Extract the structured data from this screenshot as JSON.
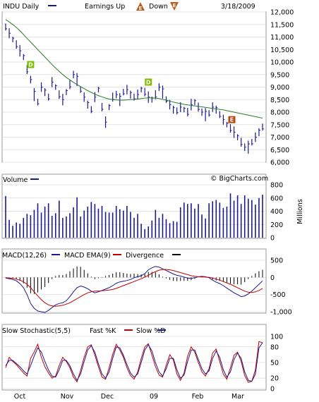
{
  "header": {
    "symbol_label": "INDU Daily",
    "earnings_label": "Earnings Up",
    "up_badge": "E",
    "down_label": "Down",
    "down_badge": "E",
    "date": "3/18/2009"
  },
  "watermark": "© BigCharts.com",
  "chart_data": [
    {
      "type": "line",
      "title": "INDU Daily",
      "ylim": [
        6000,
        12000
      ],
      "yticks": [
        "12,000",
        "11,500",
        "11,000",
        "10,500",
        "10,000",
        "9,500",
        "9,000",
        "8,500",
        "8,000",
        "7,500",
        "7,000",
        "6,500",
        "6,000"
      ],
      "series": [
        {
          "name": "INDU Daily",
          "values": [
            11400,
            11150,
            10900,
            10700,
            10450,
            10200,
            9700,
            9300,
            8700,
            8400,
            9000,
            8800,
            8600,
            9200,
            9000,
            8700,
            8500,
            8800,
            9100,
            9500,
            9300,
            8900,
            8600,
            8300,
            8100,
            8600,
            8900,
            8200,
            7600,
            8200,
            8600,
            8700,
            8500,
            8800,
            8900,
            8700,
            8600,
            8700,
            8900,
            8800,
            8600,
            8500,
            8700,
            9000,
            8800,
            8500,
            8300,
            8100,
            8050,
            8200,
            8100,
            8000,
            8300,
            8400,
            8200,
            8000,
            7900,
            7950,
            8200,
            8100,
            7900,
            7700,
            7500,
            7350,
            7200,
            7000,
            6800,
            6600,
            6600,
            6800,
            7000,
            7200,
            7400
          ]
        }
      ],
      "moving_average": [
        11700,
        11600,
        11500,
        11380,
        11250,
        11100,
        10950,
        10800,
        10650,
        10500,
        10350,
        10200,
        10050,
        9900,
        9760,
        9630,
        9500,
        9390,
        9290,
        9190,
        9100,
        9020,
        8940,
        8860,
        8790,
        8720,
        8660,
        8610,
        8560,
        8520,
        8500,
        8490,
        8480,
        8480,
        8490,
        8500,
        8510,
        8520,
        8540,
        8560,
        8570,
        8570,
        8560,
        8540,
        8510,
        8480,
        8440,
        8400,
        8370,
        8340,
        8310,
        8290,
        8270,
        8250,
        8230,
        8210,
        8190,
        8170,
        8150,
        8130,
        8110,
        8090,
        8060,
        8030,
        8000,
        7970,
        7940,
        7910,
        7880,
        7850,
        7820,
        7790,
        7760
      ],
      "dividends": [
        {
          "index": 7,
          "label": "D"
        },
        {
          "index": 40,
          "label": "D"
        }
      ],
      "earnings": [
        {
          "index": 63,
          "label": "E"
        }
      ]
    },
    {
      "type": "bar",
      "title": "Volume",
      "ylabel": "Millions",
      "ylim": [
        0,
        800
      ],
      "yticks": [
        "800",
        "600",
        "400",
        "200",
        "0"
      ],
      "values": [
        630,
        270,
        180,
        230,
        210,
        300,
        360,
        340,
        420,
        520,
        380,
        470,
        520,
        330,
        370,
        560,
        300,
        320,
        370,
        460,
        610,
        320,
        410,
        470,
        540,
        510,
        440,
        480,
        390,
        380,
        380,
        480,
        430,
        410,
        480,
        390,
        300,
        360,
        210,
        130,
        170,
        260,
        420,
        300,
        360,
        280,
        220,
        250,
        240,
        460,
        530,
        510,
        520,
        440,
        510,
        350,
        290,
        520,
        550,
        570,
        530,
        450,
        470,
        670,
        560,
        640,
        510,
        640,
        590,
        570,
        500,
        600,
        650
      ]
    },
    {
      "type": "line",
      "title": "MACD(12,26)",
      "ylim": [
        -1000,
        500
      ],
      "yticks": [
        "500",
        "0",
        "-500",
        "-1,000"
      ],
      "legend": [
        "MACD EMA(9)",
        "Divergence"
      ],
      "series": [
        {
          "name": "MACD(12,26)",
          "values": [
            -20,
            -40,
            -60,
            -100,
            -180,
            -300,
            -500,
            -760,
            -900,
            -980,
            -1000,
            -1020,
            -960,
            -880,
            -800,
            -760,
            -740,
            -680,
            -560,
            -420,
            -300,
            -250,
            -280,
            -330,
            -400,
            -450,
            -420,
            -380,
            -340,
            -300,
            -240,
            -170,
            -130,
            -110,
            -90,
            -60,
            -10,
            20,
            50,
            110,
            220,
            280,
            320,
            300,
            250,
            200,
            150,
            100,
            60,
            40,
            10,
            -20,
            -30,
            -10,
            20,
            30,
            20,
            -10,
            -80,
            -140,
            -180,
            -240,
            -310,
            -380,
            -450,
            -500,
            -560,
            -540,
            -480,
            -400,
            -300,
            -200,
            -100
          ]
        },
        {
          "name": "MACD EMA(9)",
          "values": [
            -10,
            -20,
            -30,
            -50,
            -80,
            -130,
            -200,
            -300,
            -420,
            -540,
            -650,
            -740,
            -800,
            -830,
            -840,
            -830,
            -810,
            -780,
            -740,
            -680,
            -620,
            -560,
            -500,
            -450,
            -420,
            -400,
            -400,
            -390,
            -380,
            -370,
            -350,
            -320,
            -280,
            -240,
            -200,
            -160,
            -120,
            -80,
            -40,
            10,
            60,
            120,
            170,
            210,
            230,
            230,
            220,
            200,
            170,
            140,
            110,
            80,
            50,
            30,
            20,
            15,
            10,
            0,
            -20,
            -50,
            -80,
            -120,
            -160,
            -200,
            -250,
            -300,
            -350,
            -400,
            -430,
            -440,
            -420,
            -380,
            -320
          ]
        }
      ],
      "divergence": [
        -10,
        -20,
        -30,
        -50,
        -100,
        -170,
        -300,
        -460,
        -480,
        -440,
        -350,
        -280,
        -160,
        -50,
        40,
        70,
        70,
        100,
        180,
        260,
        320,
        310,
        220,
        120,
        20,
        -50,
        -20,
        10,
        40,
        70,
        110,
        150,
        150,
        130,
        110,
        100,
        110,
        100,
        90,
        100,
        160,
        160,
        150,
        90,
        20,
        -30,
        -70,
        -100,
        -110,
        -100,
        -100,
        -100,
        -80,
        -40,
        0,
        15,
        10,
        -10,
        -60,
        -90,
        -100,
        -120,
        -150,
        -180,
        -200,
        -200,
        -210,
        -140,
        -50,
        40,
        120,
        180,
        220
      ]
    },
    {
      "type": "line",
      "title": "Slow Stochastic(5,5)",
      "ylim": [
        0,
        100
      ],
      "yticks": [
        "100",
        "80",
        "50",
        "20",
        "0"
      ],
      "legend": [
        "Fast %K",
        "Slow %D"
      ],
      "series": [
        {
          "name": "Fast %K",
          "values": [
            40,
            60,
            52,
            46,
            38,
            30,
            24,
            58,
            70,
            85,
            60,
            42,
            30,
            20,
            24,
            44,
            60,
            52,
            40,
            22,
            13,
            35,
            60,
            80,
            84,
            64,
            42,
            22,
            18,
            40,
            66,
            85,
            74,
            60,
            40,
            25,
            18,
            32,
            58,
            80,
            86,
            64,
            42,
            26,
            22,
            45,
            65,
            55,
            28,
            16,
            30,
            62,
            80,
            70,
            50,
            32,
            24,
            38,
            68,
            76,
            52,
            28,
            18,
            40,
            64,
            70,
            52,
            25,
            12,
            14,
            36,
            90,
            88
          ]
        },
        {
          "name": "Slow %D",
          "values": [
            44,
            54,
            54,
            48,
            42,
            34,
            28,
            44,
            62,
            78,
            70,
            52,
            36,
            24,
            22,
            36,
            54,
            54,
            44,
            28,
            16,
            28,
            52,
            74,
            82,
            70,
            48,
            28,
            20,
            32,
            58,
            80,
            78,
            64,
            46,
            30,
            22,
            28,
            50,
            74,
            84,
            72,
            50,
            32,
            24,
            38,
            58,
            58,
            36,
            20,
            26,
            52,
            74,
            74,
            56,
            38,
            28,
            34,
            58,
            72,
            60,
            36,
            22,
            32,
            56,
            68,
            58,
            32,
            16,
            14,
            28,
            78,
            88
          ]
        }
      ]
    },
    {
      "type": "line",
      "title": "",
      "categories": [
        "Oct",
        "Nov",
        "Dec",
        "09",
        "Feb",
        "Mar"
      ]
    }
  ]
}
